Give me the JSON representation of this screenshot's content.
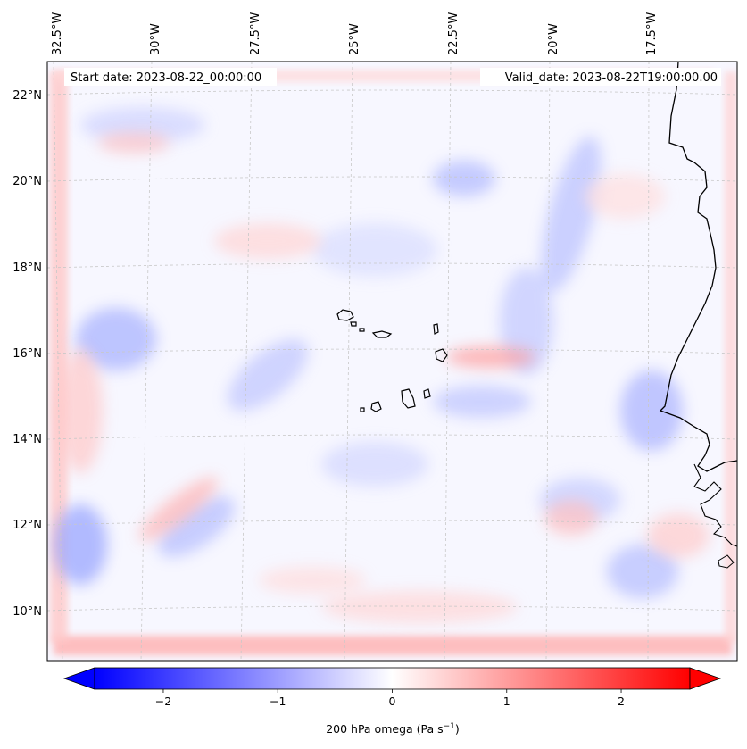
{
  "map": {
    "start_date_text": "Start date: 2023-08-22_00:00:00",
    "valid_date_text": "Valid_date: 2023-08-22T19:00:00.00",
    "lon_labels": [
      "32.5°W",
      "30°W",
      "27.5°W",
      "25°W",
      "22.5°W",
      "20°W",
      "17.5°W"
    ],
    "lat_labels": [
      "22°N",
      "20°N",
      "18°N",
      "16°N",
      "14°N",
      "12°N",
      "10°N"
    ],
    "coastline_color": "#000000",
    "gridline_color": "#c8c8c8"
  },
  "colorbar": {
    "ticks": [
      "−2",
      "−1",
      "0",
      "1",
      "2"
    ],
    "label_main": "200 hPa omega (Pa s",
    "label_sup": "−1",
    "label_end": ")",
    "range": [
      -2.6,
      2.6
    ],
    "extend": "both",
    "colormap": "bwr",
    "low_color": "#0000ff",
    "mid_color": "#ffffff",
    "high_color": "#ff0000"
  },
  "chart_data": {
    "type": "heatmap",
    "variable": "200 hPa omega",
    "units": "Pa s^-1",
    "colorbar_range": [
      -2.6,
      2.6
    ],
    "colormap": "bwr",
    "lon_ticks": [
      -32.5,
      -30,
      -27.5,
      -25,
      -22.5,
      -20,
      -17.5
    ],
    "lat_ticks": [
      22,
      20,
      18,
      16,
      14,
      12,
      10
    ],
    "extent": {
      "lon": [
        -33,
        -15.5
      ],
      "lat": [
        8.8,
        22.8
      ]
    }
  }
}
